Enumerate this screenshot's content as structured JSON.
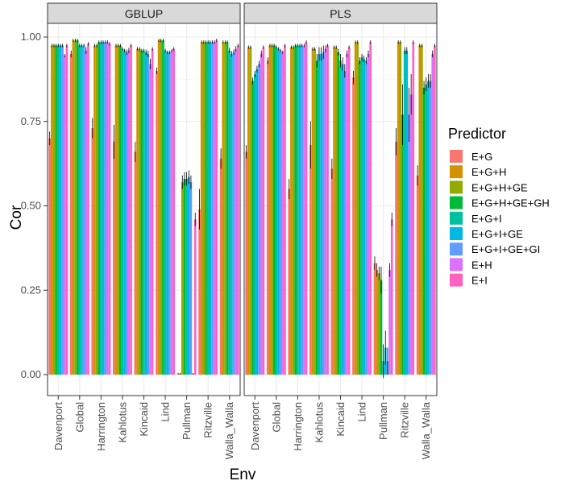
{
  "chart_data": {
    "type": "bar",
    "xlabel": "Env",
    "ylabel": "Cor",
    "ylim": [
      0,
      1.0
    ],
    "yticks": [
      0.0,
      0.25,
      0.5,
      0.75,
      1.0
    ],
    "ytick_labels": [
      "0.00",
      "0.25",
      "0.50",
      "0.75",
      "1.00"
    ],
    "grid": true,
    "legend_title": "Predictor",
    "legend_position": "right",
    "categories": [
      "Davenport",
      "Global",
      "Harrington",
      "Kahlotus",
      "Kincaid",
      "Lind",
      "Pullman",
      "Ritzville",
      "Walla_Walla"
    ],
    "series": [
      {
        "name": "E+G",
        "color": "#F8766D"
      },
      {
        "name": "E+G+H",
        "color": "#D39200"
      },
      {
        "name": "E+G+H+GE",
        "color": "#93AA00"
      },
      {
        "name": "E+G+H+GE+GH",
        "color": "#00BA38"
      },
      {
        "name": "E+G+I",
        "color": "#00C19F"
      },
      {
        "name": "E+G+I+GE",
        "color": "#00B9E3"
      },
      {
        "name": "E+G+I+GE+GI",
        "color": "#619CFF"
      },
      {
        "name": "E+H",
        "color": "#DB72FB"
      },
      {
        "name": "E+I",
        "color": "#FF61C3"
      }
    ],
    "panels": [
      {
        "title": "GBLUP",
        "values": [
          [
            0.7,
            0.975,
            0.975,
            0.975,
            0.975,
            0.975,
            0.975,
            0.945,
            0.975
          ],
          [
            0.95,
            0.99,
            0.99,
            0.99,
            0.975,
            0.975,
            0.975,
            0.96,
            0.98
          ],
          [
            0.73,
            0.975,
            0.975,
            0.985,
            0.985,
            0.985,
            0.985,
            0.985,
            0.98
          ],
          [
            0.69,
            0.975,
            0.975,
            0.975,
            0.965,
            0.96,
            0.955,
            0.96,
            0.975
          ],
          [
            0.66,
            0.965,
            0.965,
            0.96,
            0.96,
            0.955,
            0.95,
            0.92,
            0.965
          ],
          [
            0.9,
            0.99,
            0.99,
            0.99,
            0.96,
            0.955,
            0.955,
            0.96,
            0.965
          ],
          [
            0.003,
            0.003,
            0.57,
            0.58,
            0.58,
            0.585,
            0.57,
            0.003,
            0.46
          ],
          [
            0.49,
            0.985,
            0.985,
            0.985,
            0.985,
            0.985,
            0.985,
            0.985,
            0.99
          ],
          [
            0.64,
            0.985,
            0.985,
            0.985,
            0.96,
            0.95,
            0.955,
            0.965,
            0.975
          ]
        ],
        "errors": [
          [
            0.02,
            0.005,
            0.005,
            0.005,
            0.005,
            0.005,
            0.005,
            0.005,
            0.005
          ],
          [
            0.01,
            0.005,
            0.005,
            0.005,
            0.005,
            0.005,
            0.005,
            0.01,
            0.005
          ],
          [
            0.03,
            0.005,
            0.005,
            0.005,
            0.005,
            0.005,
            0.005,
            0.005,
            0.005
          ],
          [
            0.05,
            0.005,
            0.005,
            0.005,
            0.005,
            0.005,
            0.008,
            0.008,
            0.005
          ],
          [
            0.03,
            0.005,
            0.005,
            0.005,
            0.005,
            0.008,
            0.01,
            0.015,
            0.005
          ],
          [
            0.01,
            0.005,
            0.005,
            0.005,
            0.005,
            0.005,
            0.005,
            0.005,
            0.005
          ],
          [
            0.002,
            0.002,
            0.02,
            0.02,
            0.02,
            0.02,
            0.02,
            0.002,
            0.02
          ],
          [
            0.06,
            0.005,
            0.005,
            0.005,
            0.005,
            0.005,
            0.005,
            0.005,
            0.005
          ],
          [
            0.03,
            0.005,
            0.005,
            0.005,
            0.008,
            0.008,
            0.008,
            0.008,
            0.005
          ]
        ]
      },
      {
        "title": "PLS",
        "values": [
          [
            0.66,
            0.97,
            0.97,
            0.87,
            0.89,
            0.905,
            0.92,
            0.95,
            0.97
          ],
          [
            0.93,
            0.975,
            0.975,
            0.975,
            0.97,
            0.965,
            0.96,
            0.955,
            0.975
          ],
          [
            0.55,
            0.97,
            0.97,
            0.975,
            0.975,
            0.975,
            0.975,
            0.975,
            0.985
          ],
          [
            0.68,
            0.965,
            0.965,
            0.93,
            0.95,
            0.95,
            0.955,
            0.965,
            0.975
          ],
          [
            0.61,
            0.97,
            0.97,
            0.955,
            0.93,
            0.92,
            0.9,
            0.95,
            0.97
          ],
          [
            0.88,
            0.985,
            0.985,
            0.93,
            0.94,
            0.935,
            0.93,
            0.95,
            0.985
          ],
          [
            0.33,
            0.31,
            0.3,
            0.28,
            0.04,
            0.08,
            0.04,
            0.31,
            0.46
          ],
          [
            0.69,
            0.985,
            0.985,
            0.77,
            0.96,
            0.96,
            0.77,
            0.83,
            0.985
          ],
          [
            0.59,
            0.975,
            0.975,
            0.85,
            0.86,
            0.87,
            0.87,
            0.95,
            0.975
          ]
        ],
        "errors": [
          [
            0.02,
            0.005,
            0.005,
            0.01,
            0.01,
            0.01,
            0.01,
            0.01,
            0.005
          ],
          [
            0.01,
            0.005,
            0.005,
            0.005,
            0.005,
            0.005,
            0.005,
            0.005,
            0.005
          ],
          [
            0.03,
            0.005,
            0.005,
            0.005,
            0.005,
            0.005,
            0.005,
            0.005,
            0.005
          ],
          [
            0.07,
            0.005,
            0.005,
            0.02,
            0.02,
            0.02,
            0.02,
            0.01,
            0.005
          ],
          [
            0.03,
            0.005,
            0.005,
            0.01,
            0.02,
            0.02,
            0.02,
            0.01,
            0.005
          ],
          [
            0.02,
            0.005,
            0.005,
            0.01,
            0.01,
            0.01,
            0.01,
            0.01,
            0.005
          ],
          [
            0.02,
            0.02,
            0.02,
            0.04,
            0.05,
            0.05,
            0.04,
            0.02,
            0.02
          ],
          [
            0.04,
            0.005,
            0.005,
            0.09,
            0.01,
            0.01,
            0.08,
            0.06,
            0.005
          ],
          [
            0.03,
            0.005,
            0.005,
            0.02,
            0.02,
            0.02,
            0.02,
            0.01,
            0.005
          ]
        ]
      }
    ]
  }
}
